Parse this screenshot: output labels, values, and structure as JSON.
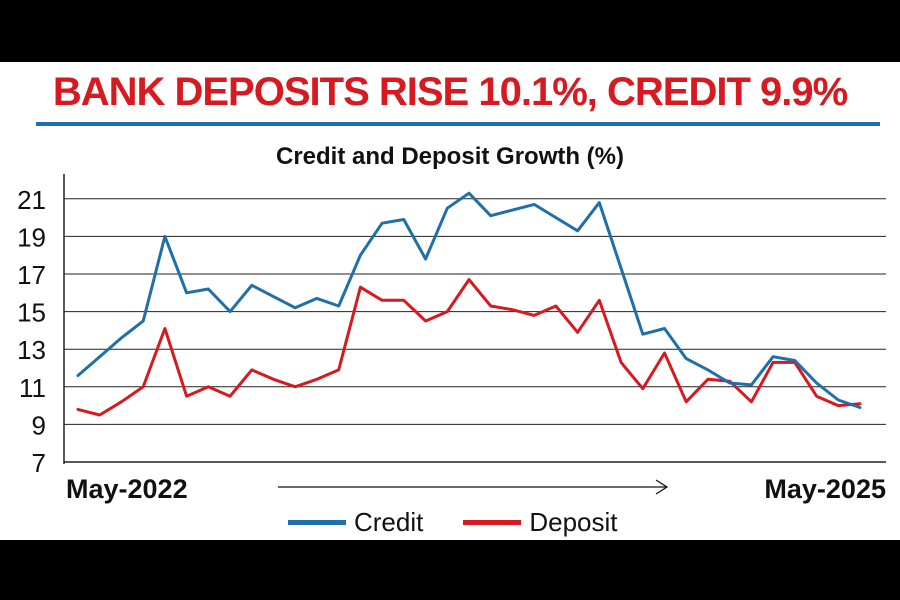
{
  "headline": "BANK DEPOSITS RISE 10.1%, CREDIT 9.9%",
  "chart_data": {
    "type": "line",
    "title": "Credit and Deposit Growth (%)",
    "x_start_label": "May-2022",
    "x_end_label": "May-2025",
    "yticks": [
      7,
      9,
      11,
      13,
      15,
      17,
      19,
      21
    ],
    "ylim": [
      7,
      22
    ],
    "grid": true,
    "legend_position": "bottom",
    "colors": {
      "credit": "#1f6fa8",
      "deposit": "#d71920",
      "headline": "#d71920",
      "rule": "#1f6fa8"
    },
    "series": [
      {
        "name": "Credit",
        "color": "#1f6fa8",
        "values": [
          11.6,
          12.6,
          13.6,
          14.5,
          19.0,
          16.0,
          16.2,
          15.0,
          16.4,
          15.8,
          15.2,
          15.7,
          15.3,
          18.0,
          19.7,
          19.9,
          17.8,
          20.5,
          21.3,
          20.1,
          20.4,
          20.7,
          20.0,
          19.3,
          20.8,
          17.3,
          13.8,
          14.1,
          12.5,
          11.9,
          11.2,
          11.1,
          12.6,
          12.4,
          11.2,
          10.3,
          9.9
        ]
      },
      {
        "name": "Deposit",
        "color": "#d71920",
        "values": [
          9.8,
          9.5,
          10.2,
          11.0,
          14.1,
          10.5,
          11.0,
          10.5,
          11.9,
          11.4,
          11.0,
          11.4,
          11.9,
          16.3,
          15.6,
          15.6,
          14.5,
          15.0,
          16.7,
          15.3,
          15.1,
          14.8,
          15.3,
          13.9,
          15.6,
          12.3,
          10.9,
          12.8,
          10.2,
          11.4,
          11.3,
          10.2,
          12.3,
          12.3,
          10.5,
          10.0,
          10.1
        ]
      }
    ]
  }
}
